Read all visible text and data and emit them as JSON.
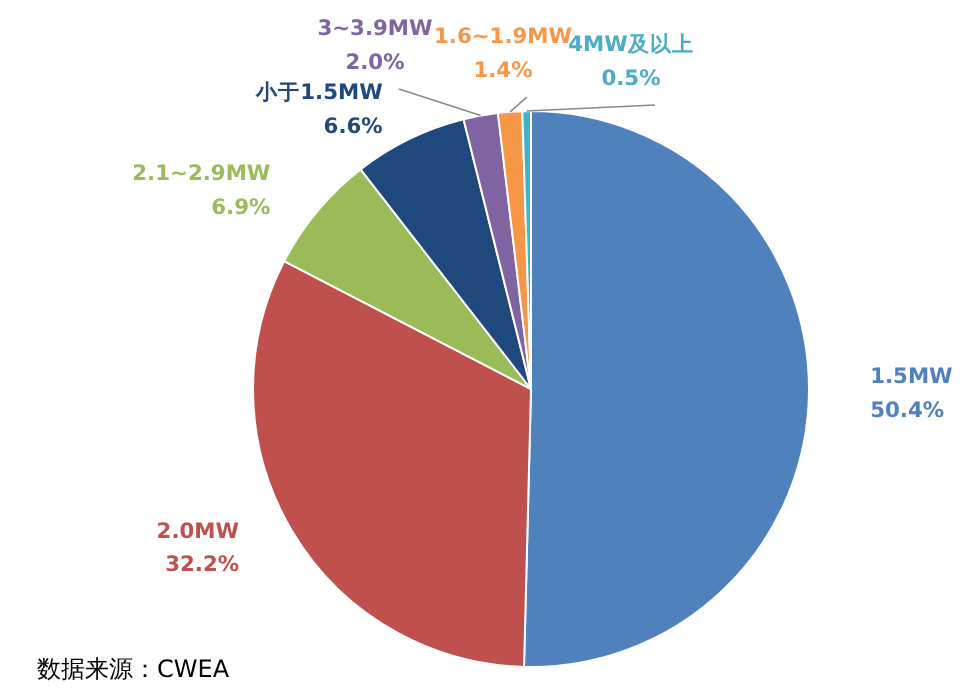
{
  "chart_data": {
    "type": "pie",
    "categories": [
      "1.5MW",
      "2.0MW",
      "2.1~2.9MW",
      "小于1.5MW",
      "3~3.9MW",
      "1.6~1.9MW",
      "4MW及以上"
    ],
    "values": [
      50.4,
      32.2,
      6.9,
      6.6,
      2.0,
      1.4,
      0.5
    ],
    "value_labels": [
      "50.4%",
      "32.2%",
      "6.9%",
      "6.6%",
      "2.0%",
      "1.4%",
      "0.5%"
    ],
    "colors": [
      "#4f81bd",
      "#c0504d",
      "#9bbb59",
      "#1f497d",
      "#8064a2",
      "#f79646",
      "#4bacc6"
    ],
    "annotations": [
      "数据来源：CWEA"
    ]
  }
}
